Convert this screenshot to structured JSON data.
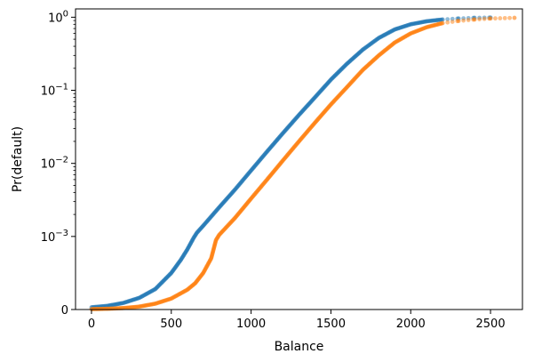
{
  "chart_data": {
    "type": "scatter",
    "title": "",
    "xlabel": "Balance",
    "ylabel": "Pr(default)",
    "xlim": [
      -100,
      2700
    ],
    "ylim": [
      0,
      1.3
    ],
    "yscale": "symlog",
    "ylinthresh": 0.001,
    "grid": false,
    "legend": "none",
    "x_ticks": [
      {
        "value": 0,
        "label": "0"
      },
      {
        "value": 500,
        "label": "500"
      },
      {
        "value": 1000,
        "label": "1000"
      },
      {
        "value": 1500,
        "label": "1500"
      },
      {
        "value": 2000,
        "label": "2000"
      },
      {
        "value": 2500,
        "label": "2500"
      }
    ],
    "y_ticks": [
      {
        "value": 0,
        "label": "0"
      },
      {
        "value": 0.001,
        "label_base": "10",
        "label_exp": "−3"
      },
      {
        "value": 0.01,
        "label_base": "10",
        "label_exp": "−2"
      },
      {
        "value": 0.1,
        "label_base": "10",
        "label_exp": "−1"
      },
      {
        "value": 1,
        "label_base": "10",
        "label_exp": "0"
      }
    ],
    "series": [
      {
        "color": "#1f77b4",
        "x": [
          0,
          100,
          200,
          300,
          400,
          500,
          560,
          600,
          640,
          660,
          700,
          800,
          900,
          1000,
          1100,
          1200,
          1300,
          1400,
          1500,
          1600,
          1700,
          1800,
          1900,
          2000,
          2100,
          2200,
          2300,
          2400,
          2500
        ],
        "y": [
          3e-05,
          5e-05,
          9e-05,
          0.00016,
          0.00028,
          0.0005,
          0.00068,
          0.00082,
          0.00098,
          0.00112,
          0.0014,
          0.0025,
          0.0044,
          0.008,
          0.0145,
          0.026,
          0.046,
          0.08,
          0.14,
          0.23,
          0.36,
          0.52,
          0.68,
          0.8,
          0.88,
          0.93,
          0.96,
          0.98,
          0.99
        ]
      },
      {
        "color": "#ff7f0e",
        "x": [
          0,
          100,
          200,
          300,
          400,
          500,
          600,
          650,
          700,
          750,
          780,
          800,
          900,
          1000,
          1100,
          1200,
          1300,
          1400,
          1500,
          1600,
          1700,
          1800,
          1900,
          2000,
          2100,
          2200,
          2300,
          2400,
          2500,
          2650
        ],
        "y": [
          5e-06,
          1e-05,
          2e-05,
          4e-05,
          8e-05,
          0.00015,
          0.00027,
          0.00036,
          0.0005,
          0.0007,
          0.00095,
          0.00105,
          0.0018,
          0.0033,
          0.006,
          0.011,
          0.02,
          0.036,
          0.064,
          0.11,
          0.19,
          0.3,
          0.45,
          0.6,
          0.73,
          0.83,
          0.89,
          0.93,
          0.96,
          0.98
        ]
      }
    ]
  }
}
